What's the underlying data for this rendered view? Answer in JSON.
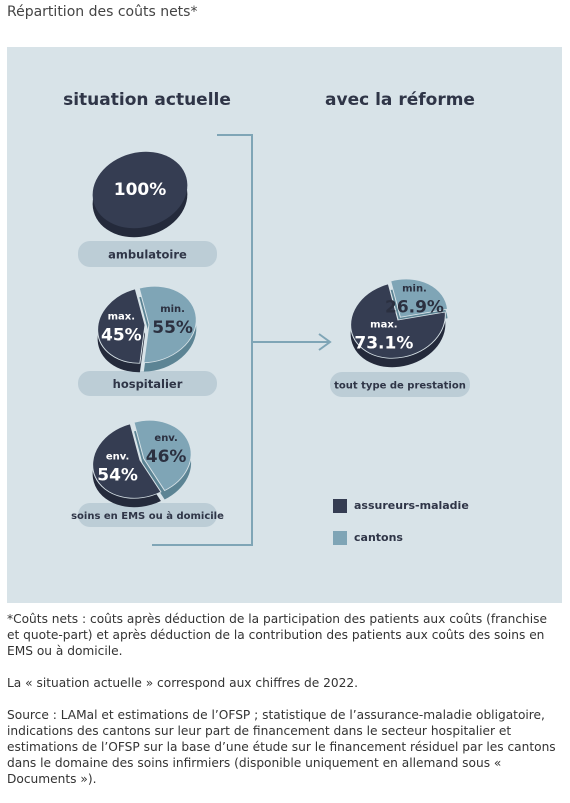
{
  "page_title": "Répartition des coûts nets*",
  "headings": [
    "situation actuelle",
    "avec la réforme"
  ],
  "legend": [
    {
      "name": "assureurs-maladie",
      "color": "#353d52"
    },
    {
      "name": "cantons",
      "color": "#7fa5b6"
    }
  ],
  "chart_data": [
    {
      "type": "pie",
      "label": "ambulatoire",
      "values": [
        100
      ],
      "value_labels": [
        "100%"
      ]
    },
    {
      "type": "pie",
      "label": "hospitalier",
      "values": [
        45,
        55
      ],
      "value_labels": [
        "45%",
        "55%"
      ],
      "qualifiers": [
        "max.",
        "min."
      ]
    },
    {
      "type": "pie",
      "label": "soins en EMS ou à domicile",
      "values": [
        54,
        46
      ],
      "value_labels": [
        "54%",
        "46%"
      ],
      "qualifiers": [
        "env.",
        "env."
      ]
    },
    {
      "type": "pie",
      "label": "tout type de prestation",
      "values": [
        73.1,
        26.9
      ],
      "value_labels": [
        "73.1%",
        "26.9%"
      ],
      "qualifiers": [
        "max.",
        "min."
      ]
    }
  ],
  "notes": [
    "*Coûts nets : coûts après déduction de la participation des patients aux coûts (franchise et quote-part) et après déduction de la contribution des patients aux coûts des soins en EMS ou à domicile.",
    "La « situation actuelle » correspond aux chiffres de 2022.",
    "Source : LAMal et estimations de l’OFSP ; statistique de l’assurance-maladie obligatoire, indications des cantons sur leur part de financement dans le secteur hospitalier et estimations de l’OFSP sur la base d’une étude sur le financement résiduel par les cantons dans le domaine des soins infirmiers (disponible uniquement en allemand sous « Documents »)."
  ]
}
